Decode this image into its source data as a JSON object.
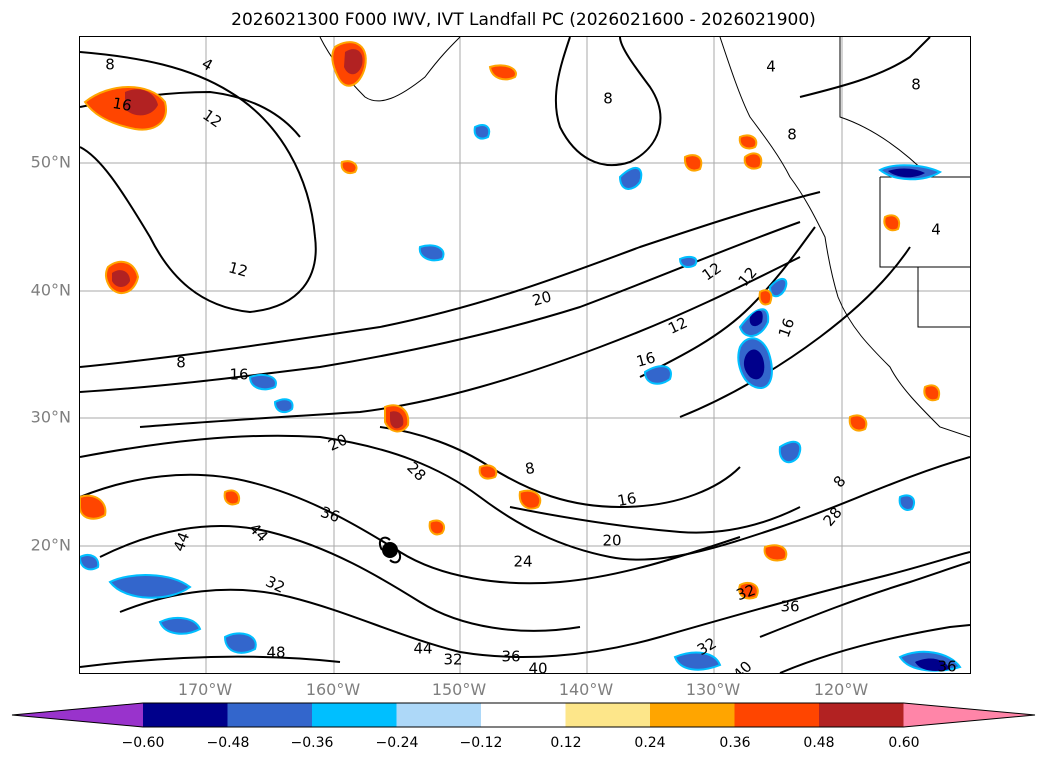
{
  "title": "2026021300 F000 IWV, IVT Landfall PC (2026021600 - 2026021900)",
  "lat_labels": [
    "50°N",
    "40°N",
    "30°N",
    "20°N"
  ],
  "lon_labels": [
    "170°W",
    "160°W",
    "150°W",
    "140°W",
    "130°W",
    "120°W"
  ],
  "colorbar": {
    "colors": [
      "#9933cc",
      "#00008b",
      "#3366cc",
      "#00bfff",
      "#add8f8",
      "#ffffff",
      "#fde68a",
      "#ffa500",
      "#ff4500",
      "#b22222",
      "#ff85a8"
    ],
    "tick_labels": [
      "−0.60",
      "−0.48",
      "−0.36",
      "−0.24",
      "−0.12",
      "0.12",
      "0.24",
      "0.36",
      "0.48",
      "0.60"
    ]
  },
  "contour_labels": [
    "8",
    "4",
    "16",
    "12",
    "12",
    "8",
    "8",
    "4",
    "8",
    "12",
    "12",
    "20",
    "12",
    "16",
    "8",
    "16",
    "16",
    "20",
    "28",
    "8",
    "16",
    "36",
    "44",
    "44",
    "20",
    "24",
    "32",
    "28",
    "8",
    "32",
    "36",
    "48",
    "44",
    "32",
    "36",
    "40",
    "32",
    "40",
    "36",
    "4"
  ],
  "colors": {
    "negative_fill": "#3366cc",
    "positive_fill": "#ff4500",
    "grid": "#aaaaaa",
    "axis_label": "#7f7f7f"
  }
}
